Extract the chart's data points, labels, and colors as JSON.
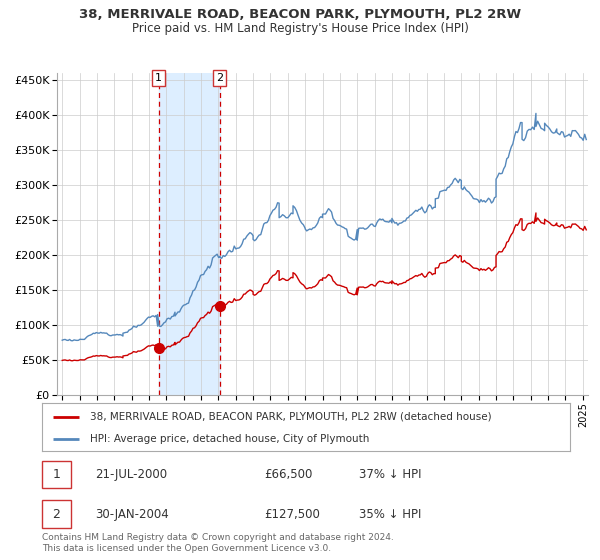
{
  "title": "38, MERRIVALE ROAD, BEACON PARK, PLYMOUTH, PL2 2RW",
  "subtitle": "Price paid vs. HM Land Registry's House Price Index (HPI)",
  "legend_line1": "38, MERRIVALE ROAD, BEACON PARK, PLYMOUTH, PL2 2RW (detached house)",
  "legend_line2": "HPI: Average price, detached house, City of Plymouth",
  "sale1_date": "21-JUL-2000",
  "sale1_price": 66500,
  "sale1_pct": "37% ↓ HPI",
  "sale2_date": "30-JAN-2004",
  "sale2_price": 127500,
  "sale2_pct": "35% ↓ HPI",
  "footer": "Contains HM Land Registry data © Crown copyright and database right 2024.\nThis data is licensed under the Open Government Licence v3.0.",
  "hpi_color": "#5588bb",
  "price_color": "#cc0000",
  "sale1_x": 2000.55,
  "sale2_x": 2004.08,
  "bg_color": "#ffffff",
  "grid_color": "#cccccc",
  "shade_color": "#ddeeff",
  "ylim_max": 460000,
  "xlim_min": 1994.7,
  "xlim_max": 2025.3
}
